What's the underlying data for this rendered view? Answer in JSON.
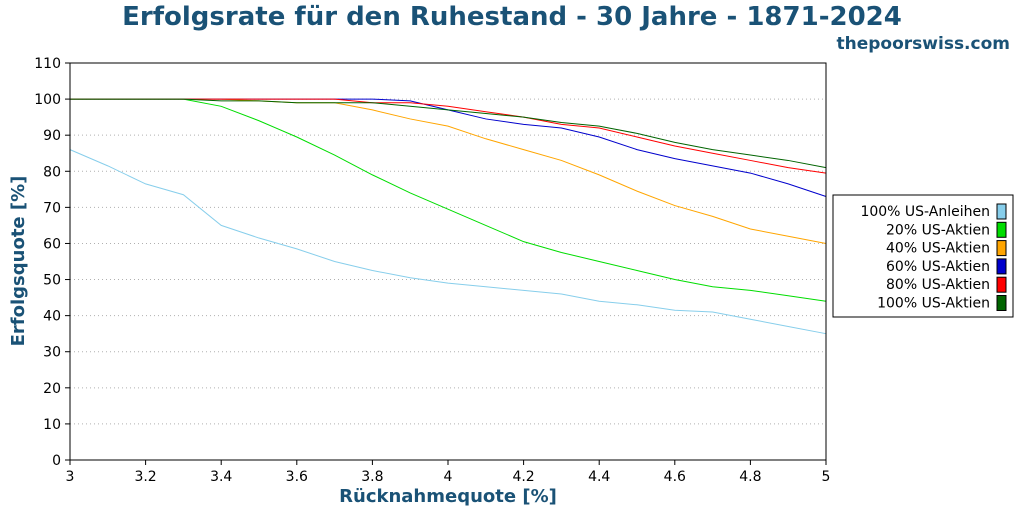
{
  "chart_data": {
    "type": "line",
    "title": "Erfolgsrate für den Ruhestand - 30 Jahre - 1871-2024",
    "source": "thepoorswiss.com",
    "xlabel": "Rücknahmequote [%]",
    "ylabel": "Erfolgsquote [%]",
    "xlim": [
      3,
      5
    ],
    "ylim": [
      0,
      110
    ],
    "xticks": [
      3,
      3.2,
      3.4,
      3.6,
      3.8,
      4,
      4.2,
      4.4,
      4.6,
      4.8,
      5
    ],
    "xtick_labels": [
      "3",
      "3.2",
      "3.4",
      "3.6",
      "3.8",
      "4",
      "4.2",
      "4.4",
      "4.6",
      "4.8",
      "5"
    ],
    "yticks": [
      0,
      10,
      20,
      30,
      40,
      50,
      60,
      70,
      80,
      90,
      100,
      110
    ],
    "ytick_labels": [
      "0",
      "10",
      "20",
      "30",
      "40",
      "50",
      "60",
      "70",
      "80",
      "90",
      "100",
      "110"
    ],
    "grid": "horizontal dotted",
    "legend_position": "right",
    "x": [
      3.0,
      3.1,
      3.2,
      3.3,
      3.4,
      3.5,
      3.6,
      3.7,
      3.8,
      3.9,
      4.0,
      4.1,
      4.2,
      4.3,
      4.4,
      4.5,
      4.6,
      4.7,
      4.8,
      4.9,
      5.0
    ],
    "series": [
      {
        "name": "100% US-Anleihen",
        "color": "#87ceeb",
        "values": [
          86,
          81.5,
          76.5,
          73.5,
          65,
          61.5,
          58.5,
          55,
          52.5,
          50.5,
          49,
          48,
          47,
          46,
          44,
          43,
          41.5,
          41,
          39,
          37,
          35
        ]
      },
      {
        "name": "20% US-Aktien",
        "color": "#00dd00",
        "values": [
          100,
          100,
          100,
          100,
          98,
          94,
          89.5,
          84.5,
          79,
          74,
          69.5,
          65,
          60.5,
          57.5,
          55,
          52.5,
          50,
          48,
          47,
          45.5,
          44
        ]
      },
      {
        "name": "40% US-Aktien",
        "color": "#ffa500",
        "values": [
          100,
          100,
          100,
          100,
          100,
          99.5,
          99,
          99,
          97,
          94.5,
          92.5,
          89,
          86,
          83,
          79,
          74.5,
          70.5,
          67.5,
          64,
          62,
          60
        ]
      },
      {
        "name": "60% US-Aktien",
        "color": "#0000cc",
        "values": [
          100,
          100,
          100,
          100,
          100,
          100,
          100,
          100,
          100,
          99.5,
          97,
          94.5,
          93,
          92,
          89.5,
          86,
          83.5,
          81.5,
          79.5,
          76.5,
          73
        ]
      },
      {
        "name": "80% US-Aktien",
        "color": "#ff0000",
        "values": [
          100,
          100,
          100,
          100,
          100,
          100,
          100,
          100,
          99,
          99,
          98,
          96.5,
          95,
          93,
          92,
          89.5,
          87,
          85,
          83,
          81,
          79.5
        ]
      },
      {
        "name": "100% US-Aktien",
        "color": "#006400",
        "values": [
          100,
          100,
          100,
          100,
          99.5,
          99.5,
          99,
          99,
          99,
          98,
          97,
          96,
          95,
          93.5,
          92.5,
          90.5,
          88,
          86,
          84.5,
          83,
          81
        ]
      }
    ]
  }
}
